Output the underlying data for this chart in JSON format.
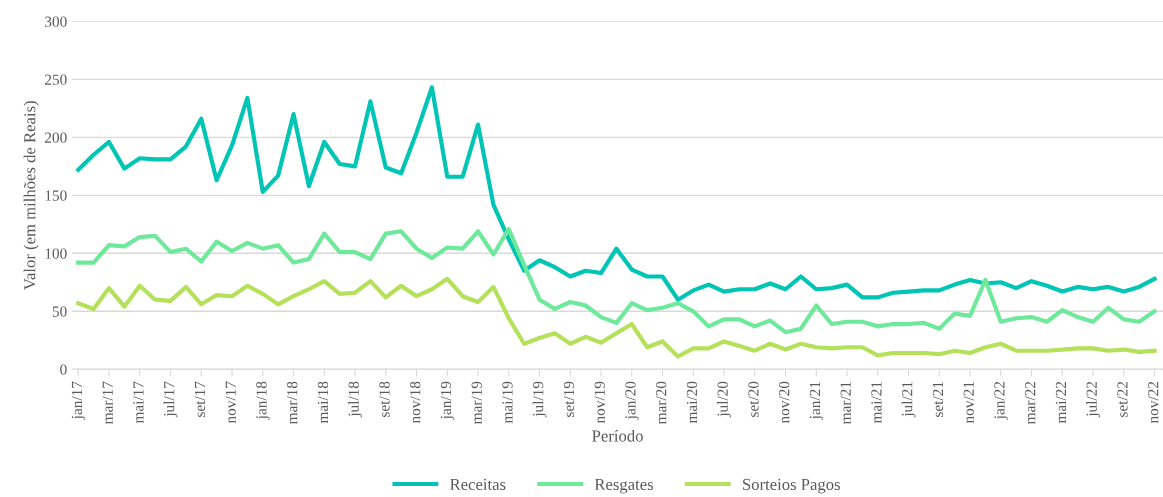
{
  "chart_data": {
    "type": "line",
    "xlabel": "Período",
    "ylabel": "Valor (em milhões de Reais)",
    "categories": [
      "jan/17",
      null,
      "mar/17",
      null,
      "mai/17",
      null,
      "jul/17",
      null,
      "set/17",
      null,
      "nov/17",
      null,
      "jan/18",
      null,
      "mar/18",
      null,
      "mai/18",
      null,
      "jul/18",
      null,
      "set/18",
      null,
      "nov/18",
      null,
      "jan/19",
      null,
      "mar/19",
      null,
      "mai/19",
      null,
      "jul/19",
      null,
      "set/19",
      null,
      "nov/19",
      null,
      "jan/20",
      null,
      "mar/20",
      null,
      "mai/20",
      null,
      "jul/20",
      null,
      "set/20",
      null,
      "nov/20",
      null,
      "jan/21",
      null,
      "mar/21",
      null,
      "mai/21",
      null,
      "jul/21",
      null,
      "set/21",
      null,
      "nov/21",
      null,
      "jan/22",
      null,
      "mar/22",
      null,
      "mai/22",
      null,
      "jul/22",
      null,
      "set/22",
      null,
      "nov/22"
    ],
    "series": [
      {
        "name": "Receitas",
        "color": "#00c4b4",
        "values": [
          172,
          185,
          196,
          173,
          182,
          181,
          181,
          192,
          216,
          163,
          193,
          234,
          153,
          167,
          220,
          158,
          196,
          177,
          175,
          231,
          174,
          169,
          204,
          243,
          166,
          166,
          211,
          142,
          112,
          85,
          94,
          88,
          80,
          85,
          83,
          104,
          86,
          80,
          80,
          60,
          68,
          73,
          67,
          69,
          69,
          74,
          69,
          80,
          69,
          70,
          73,
          62,
          62,
          66,
          67,
          68,
          68,
          73,
          77,
          74,
          75,
          70,
          76,
          72,
          67,
          71,
          69,
          71,
          67,
          71,
          78
        ]
      },
      {
        "name": "Resgates",
        "color": "#6ee89a",
        "values": [
          92,
          92,
          107,
          106,
          114,
          115,
          101,
          104,
          93,
          110,
          102,
          109,
          104,
          107,
          92,
          95,
          117,
          101,
          101,
          95,
          117,
          119,
          104,
          96,
          105,
          104,
          119,
          99,
          121,
          90,
          60,
          52,
          58,
          55,
          45,
          40,
          57,
          51,
          53,
          57,
          50,
          37,
          43,
          43,
          37,
          42,
          32,
          35,
          55,
          39,
          41,
          41,
          37,
          39,
          39,
          40,
          35,
          48,
          46,
          77,
          41,
          44,
          45,
          41,
          51,
          45,
          41,
          53,
          43,
          41,
          50
        ]
      },
      {
        "name": "Sorteios Pagos",
        "color": "#b5e05a",
        "values": [
          57,
          52,
          70,
          54,
          72,
          60,
          59,
          71,
          56,
          64,
          63,
          72,
          65,
          56,
          63,
          69,
          76,
          65,
          66,
          76,
          62,
          72,
          63,
          69,
          78,
          63,
          58,
          71,
          44,
          22,
          27,
          31,
          22,
          28,
          23,
          31,
          39,
          19,
          24,
          11,
          18,
          18,
          24,
          20,
          16,
          22,
          17,
          22,
          19,
          18,
          19,
          19,
          12,
          14,
          14,
          14,
          13,
          16,
          14,
          19,
          22,
          16,
          16,
          16,
          17,
          18,
          18,
          16,
          17,
          15,
          16
        ]
      }
    ],
    "ylim": [
      0,
      300
    ],
    "yticks": [
      0,
      50,
      100,
      150,
      200,
      250,
      300
    ],
    "grid": "y",
    "legend": "bottom",
    "marker": "none",
    "line_style": "solid"
  }
}
